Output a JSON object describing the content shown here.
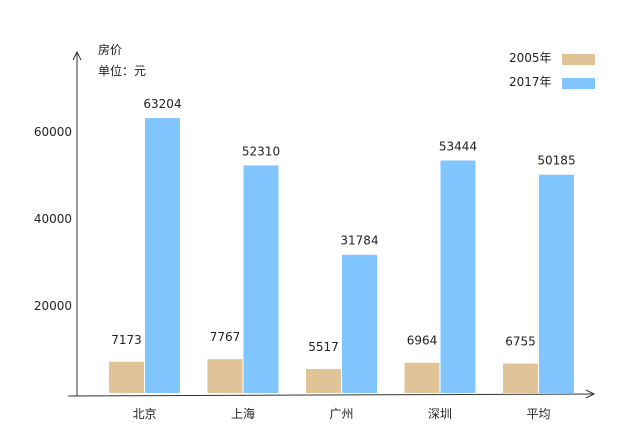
{
  "chart_data": {
    "type": "bar",
    "title": "",
    "ylabel": "房价",
    "unit": "单位：元",
    "xlabel": "",
    "categories": [
      "北京",
      "上海",
      "广州",
      "深圳",
      "平均"
    ],
    "series": [
      {
        "name": "2005年",
        "color": "#e0c396",
        "values": [
          7173,
          7767,
          5517,
          6964,
          6755
        ]
      },
      {
        "name": "2017年",
        "color": "#80c5fe",
        "values": [
          63204,
          52310,
          31784,
          53444,
          50185
        ]
      }
    ],
    "yticks": [
      20000,
      40000,
      60000
    ],
    "ylim": [
      0,
      70000
    ],
    "legend_position": "top-right",
    "grid": false
  }
}
